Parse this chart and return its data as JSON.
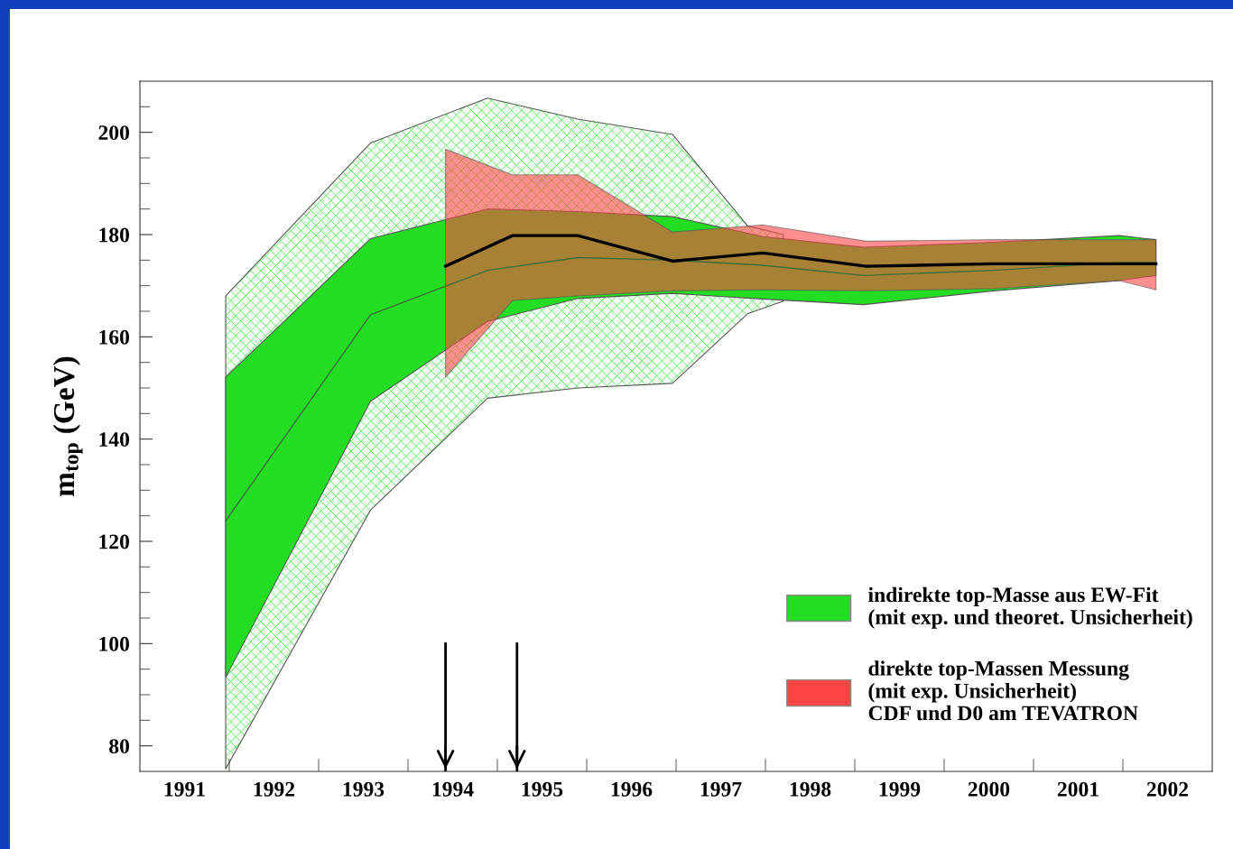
{
  "chart_data": {
    "type": "line",
    "ylabel": "m$_{top}$ (GeV)",
    "xlim": [
      1990.5,
      2002.5
    ],
    "ylim": [
      75,
      210
    ],
    "xticks": [
      1991,
      1992,
      1993,
      1994,
      1995,
      1996,
      1997,
      1998,
      1999,
      2000,
      2001,
      2002,
      {
        "value": 1991.5,
        "label": null
      },
      {
        "value": 1992.5,
        "label": null
      },
      {
        "value": 1993.5,
        "label": null
      },
      {
        "value": 1994.5,
        "label": null
      },
      {
        "value": 1995.5,
        "label": null
      },
      {
        "value": 1996.5,
        "label": null
      },
      {
        "value": 1997.5,
        "label": null
      },
      {
        "value": 1998.5,
        "label": null
      },
      {
        "value": 1999.5,
        "label": null
      },
      {
        "value": 2000.5,
        "label": null
      },
      {
        "value": 2001.5,
        "label": null
      }
    ],
    "yticks": [
      80,
      100,
      120,
      140,
      160,
      180,
      200,
      {
        "value": 85,
        "label": null
      },
      {
        "value": 90,
        "label": null
      },
      {
        "value": 95,
        "label": null
      },
      {
        "value": 105,
        "label": null
      },
      {
        "value": 110,
        "label": null
      },
      {
        "value": 115,
        "label": null
      },
      {
        "value": 125,
        "label": null
      },
      {
        "value": 130,
        "label": null
      },
      {
        "value": 135,
        "label": null
      },
      {
        "value": 145,
        "label": null
      },
      {
        "value": 150,
        "label": null
      },
      {
        "value": 155,
        "label": null
      },
      {
        "value": 165,
        "label": null
      },
      {
        "value": 170,
        "label": null
      },
      {
        "value": 175,
        "label": null
      },
      {
        "value": 185,
        "label": null
      },
      {
        "value": 190,
        "label": null
      },
      {
        "value": 195,
        "label": null
      },
      {
        "value": 205,
        "label": null
      }
    ],
    "grid": false,
    "legend": "bottom right",
    "series": [
      {
        "color": "#33ee33",
        "line_style": "hatched",
        "x": [
          1991.46,
          1993.08,
          1994.39,
          1995.4,
          1996.46,
          1997.3,
          1997.7
        ],
        "values": [
          null,
          null,
          null,
          null,
          null,
          null,
          null
        ],
        "lower": [
          75.5,
          126.1,
          148.0,
          150.0,
          150.9,
          164.5,
          167.0
        ],
        "upper": [
          168.0,
          197.9,
          206.7,
          202.6,
          199.6,
          181.7,
          180.0
        ]
      },
      {
        "name": "indirekte top-Masse aus EW-Fit\n(mit exp. und theoret. Unsicherheit)",
        "color": "#22dd22",
        "x": [
          1991.46,
          1993.08,
          1994.39,
          1995.4,
          1996.46,
          1997.47,
          1998.6,
          2000.05,
          2001.46,
          2001.87
        ],
        "values": [
          null,
          null,
          null,
          null,
          null,
          null,
          null,
          null,
          null,
          null
        ],
        "lower": [
          93.4,
          147.4,
          163.0,
          167.5,
          168.5,
          167.4,
          166.3,
          169.0,
          171.0,
          172.0
        ],
        "upper": [
          152.1,
          179.2,
          185.0,
          184.5,
          183.5,
          179.6,
          177.5,
          178.5,
          179.8,
          179.0
        ]
      },
      {
        "color": "#3a6e3a",
        "x": [
          1991.46,
          1993.08,
          1994.39,
          1995.4,
          1996.46,
          1997.47,
          1998.6,
          2000.05,
          2001.46,
          2001.87
        ],
        "values": [
          124.0,
          164.3,
          173.0,
          175.5,
          175.0,
          174.0,
          172.0,
          173.0,
          174.5,
          174.5
        ]
      },
      {
        "name": "direkte top-Massen Messung\n(mit exp. Unsicherheit)\nCDF und D0 am TEVATRON",
        "color": "#ff4444",
        "line_style": "dotted",
        "x": [
          1993.92,
          1994.67,
          1995.4,
          1996.46,
          1997.47,
          1998.63,
          2000.05,
          2001.46,
          2001.87
        ],
        "values": [
          null,
          null,
          null,
          null,
          null,
          null,
          null,
          null,
          null
        ],
        "lower": [
          152.1,
          167.1,
          168.0,
          169.0,
          169.2,
          169.0,
          169.4,
          171.0,
          169.2
        ],
        "upper": [
          196.7,
          191.7,
          191.7,
          180.5,
          181.9,
          178.7,
          179.0,
          179.0,
          179.0
        ]
      },
      {
        "color": "#000000",
        "x": [
          1993.92,
          1994.67,
          1995.4,
          1996.46,
          1997.47,
          1998.63,
          2000.05,
          2001.46,
          2001.87
        ],
        "values": [
          173.8,
          179.8,
          179.8,
          174.8,
          176.4,
          173.8,
          174.3,
          174.3,
          174.3
        ]
      }
    ],
    "ref_lines": [
      {
        "axis": "x",
        "value": 1993.92
      },
      {
        "axis": "x",
        "value": 1994.72
      }
    ]
  }
}
